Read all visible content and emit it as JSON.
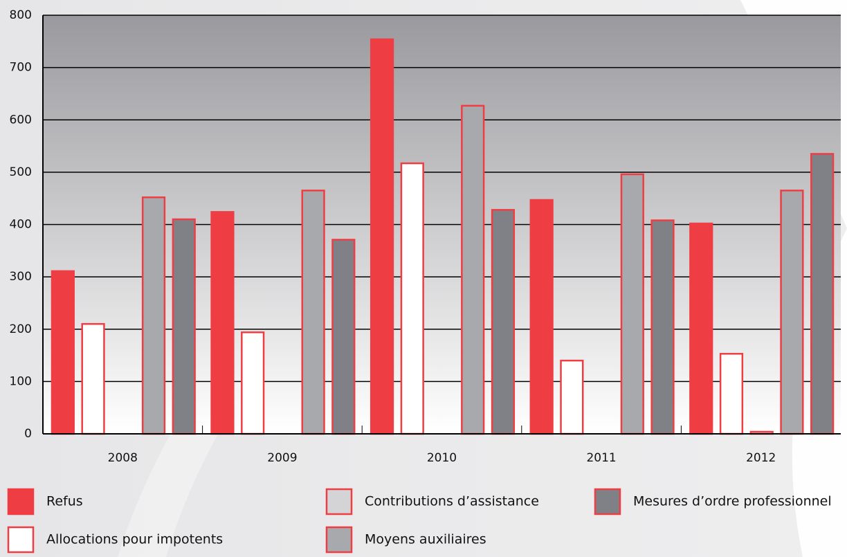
{
  "chart_data": {
    "type": "bar",
    "categories": [
      "2008",
      "2009",
      "2010",
      "2011",
      "2012"
    ],
    "series": [
      {
        "name": "Refus",
        "color": "#ee3e44",
        "values": [
          311,
          424,
          754,
          447,
          402
        ]
      },
      {
        "name": "Allocations pour impotents",
        "color": "#ffffff",
        "values": [
          210,
          194,
          517,
          140,
          153
        ]
      },
      {
        "name": "Contributions d’assistance",
        "color": "#d4d4d6",
        "values": [
          0,
          0,
          0,
          0,
          4
        ]
      },
      {
        "name": "Moyens auxiliaires",
        "color": "#a8a9ad",
        "values": [
          452,
          465,
          627,
          496,
          465
        ]
      },
      {
        "name": "Mesures d’ordre professionnel",
        "color": "#808087",
        "values": [
          410,
          371,
          428,
          408,
          535
        ]
      }
    ],
    "ylim": [
      0,
      800
    ],
    "yticks": [
      0,
      100,
      200,
      300,
      400,
      500,
      600,
      700,
      800
    ],
    "grid": true
  }
}
